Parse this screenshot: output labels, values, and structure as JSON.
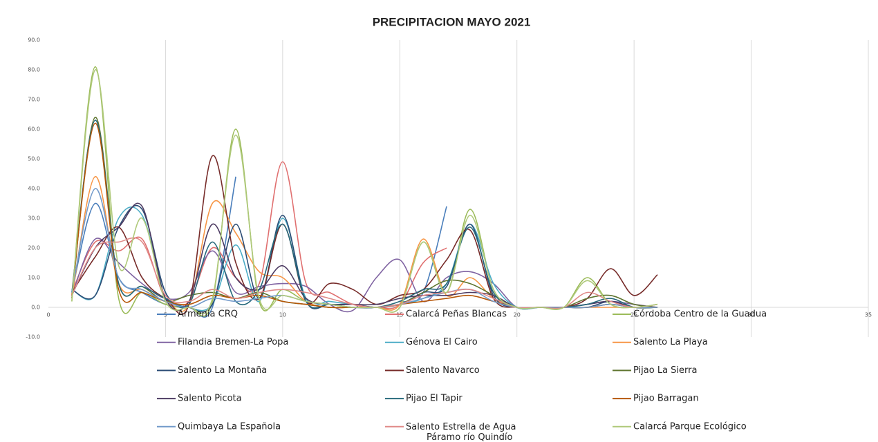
{
  "chart_data": {
    "type": "line",
    "title": "PRECIPITACION MAYO 2021",
    "x": [
      1,
      2,
      3,
      4,
      5,
      6,
      7,
      8,
      9,
      10,
      11,
      12,
      13,
      14,
      15,
      16,
      17,
      18,
      19,
      20,
      21,
      22,
      23,
      24,
      25,
      26
    ],
    "xlim": [
      0,
      35
    ],
    "xticks": [
      0,
      5,
      10,
      15,
      20,
      25,
      30,
      35
    ],
    "ylim": [
      -10,
      90
    ],
    "yticks": [
      {
        "value": -10,
        "label": "-10.0"
      },
      {
        "value": 0,
        "label": "0.0"
      },
      {
        "value": 10,
        "label": "10.0"
      },
      {
        "value": 20,
        "label": "20.0"
      },
      {
        "value": 30,
        "label": "30.0"
      },
      {
        "value": 40,
        "label": "40.0"
      },
      {
        "value": 50,
        "label": "50.0"
      },
      {
        "value": 60,
        "label": "60.0"
      },
      {
        "value": 70,
        "label": "70.0"
      },
      {
        "value": 80,
        "label": "80.0"
      },
      {
        "value": 90,
        "label": "90.0"
      }
    ],
    "grid": true,
    "legend": "bottom",
    "series": [
      {
        "name": "Armenia CRQ",
        "color": "#4a7ebb",
        "values": [
          5,
          35,
          10,
          5,
          1,
          0,
          0,
          44,
          null,
          null,
          null,
          null,
          null,
          null,
          2,
          5,
          34,
          null,
          null,
          null,
          null,
          null,
          null,
          null,
          null,
          null
        ]
      },
      {
        "name": "Calarcá Peñas Blancas",
        "color": "#e07070",
        "values": [
          5,
          22,
          19,
          23,
          3,
          2,
          20,
          10,
          8,
          49,
          8,
          5,
          1,
          0,
          1,
          15,
          20,
          null,
          null,
          null,
          null,
          null,
          null,
          null,
          null,
          null
        ]
      },
      {
        "name": "Córdoba Centro de la Guadua",
        "color": "#9bbb59",
        "values": [
          2,
          81,
          3,
          5,
          1,
          0,
          2,
          60,
          2,
          6,
          2,
          1,
          0,
          0,
          0,
          22,
          5,
          33,
          6,
          0,
          0,
          0,
          10,
          1,
          0,
          1
        ]
      },
      {
        "name": "Filandia Bremen-La Popa",
        "color": "#8064a2",
        "values": [
          4,
          23,
          15,
          8,
          3,
          5,
          19,
          5,
          7,
          8,
          7,
          1,
          -1,
          10,
          16,
          2,
          10,
          12,
          8,
          0,
          0,
          0,
          1,
          2,
          1,
          0
        ]
      },
      {
        "name": "Génova El Cairo",
        "color": "#4bacc6",
        "values": [
          6,
          4,
          30,
          31,
          5,
          0,
          1,
          21,
          2,
          30,
          3,
          2,
          1,
          0,
          1,
          3,
          8,
          28,
          8,
          0,
          0,
          0,
          0,
          1,
          0,
          0
        ]
      },
      {
        "name": "Salento  La Playa",
        "color": "#f79646",
        "values": [
          3,
          44,
          8,
          6,
          2,
          1,
          35,
          25,
          12,
          10,
          2,
          0,
          0,
          0,
          1,
          23,
          4,
          10,
          3,
          0,
          0,
          0,
          0,
          0,
          0,
          0
        ]
      },
      {
        "name": "Salento  La Montaña",
        "color": "#2c4d75",
        "values": [
          6,
          4,
          27,
          33,
          5,
          0,
          1,
          28,
          3,
          31,
          2,
          1,
          1,
          0,
          1,
          5,
          7,
          28,
          4,
          0,
          0,
          0,
          0,
          2,
          0,
          0
        ]
      },
      {
        "name": "Salento Navarco",
        "color": "#772c2a",
        "values": [
          5,
          17,
          27,
          10,
          3,
          1,
          51,
          15,
          3,
          28,
          2,
          8,
          6,
          1,
          4,
          6,
          16,
          26,
          3,
          0,
          0,
          0,
          3,
          13,
          4,
          11
        ]
      },
      {
        "name": "Pijao  La Sierra",
        "color": "#5f7530",
        "values": [
          3,
          64,
          8,
          7,
          2,
          4,
          5,
          3,
          5,
          2,
          1,
          0,
          0,
          0,
          1,
          5,
          9,
          8,
          4,
          0,
          0,
          0,
          3,
          4,
          1,
          0
        ]
      },
      {
        "name": "Salento  Picota",
        "color": "#4d3b62",
        "values": [
          4,
          20,
          27,
          34,
          3,
          2,
          28,
          10,
          6,
          14,
          3,
          1,
          1,
          1,
          3,
          4,
          4,
          5,
          4,
          0,
          0,
          0,
          1,
          2,
          0,
          0
        ]
      },
      {
        "name": "Pijao El Tapir",
        "color": "#276a7c",
        "values": [
          5,
          63,
          8,
          7,
          3,
          1,
          22,
          2,
          6,
          28,
          2,
          1,
          0,
          0,
          2,
          6,
          8,
          27,
          5,
          0,
          0,
          0,
          1,
          3,
          0,
          0
        ]
      },
      {
        "name": "Pijao Barragan",
        "color": "#b65708",
        "values": [
          4,
          62,
          6,
          5,
          2,
          1,
          4,
          3,
          4,
          2,
          1,
          0,
          0,
          0,
          1,
          2,
          3,
          4,
          2,
          0,
          0,
          0,
          0,
          1,
          0,
          0
        ]
      },
      {
        "name": "Quimbaya La Española",
        "color": "#729aca",
        "values": [
          5,
          40,
          10,
          6,
          2,
          0,
          3,
          2,
          3,
          4,
          2,
          1,
          0,
          0,
          1,
          3,
          5,
          6,
          2,
          0,
          0,
          0,
          0,
          1,
          0,
          0
        ]
      },
      {
        "name": "Salento Estrella de Agua Páramo río Quindío",
        "color": "#e08a88",
        "values": [
          4,
          20,
          22,
          22,
          4,
          2,
          6,
          3,
          5,
          6,
          5,
          3,
          1,
          0,
          1,
          4,
          5,
          6,
          3,
          0,
          0,
          0,
          5,
          2,
          0,
          1
        ]
      },
      {
        "name": "Calarcá  Parque Ecológico",
        "color": "#afc97a",
        "values": [
          2,
          80,
          14,
          30,
          2,
          0,
          3,
          58,
          3,
          4,
          2,
          1,
          0,
          0,
          0,
          22,
          5,
          31,
          6,
          0,
          0,
          0,
          9,
          1,
          0,
          1
        ]
      }
    ]
  }
}
